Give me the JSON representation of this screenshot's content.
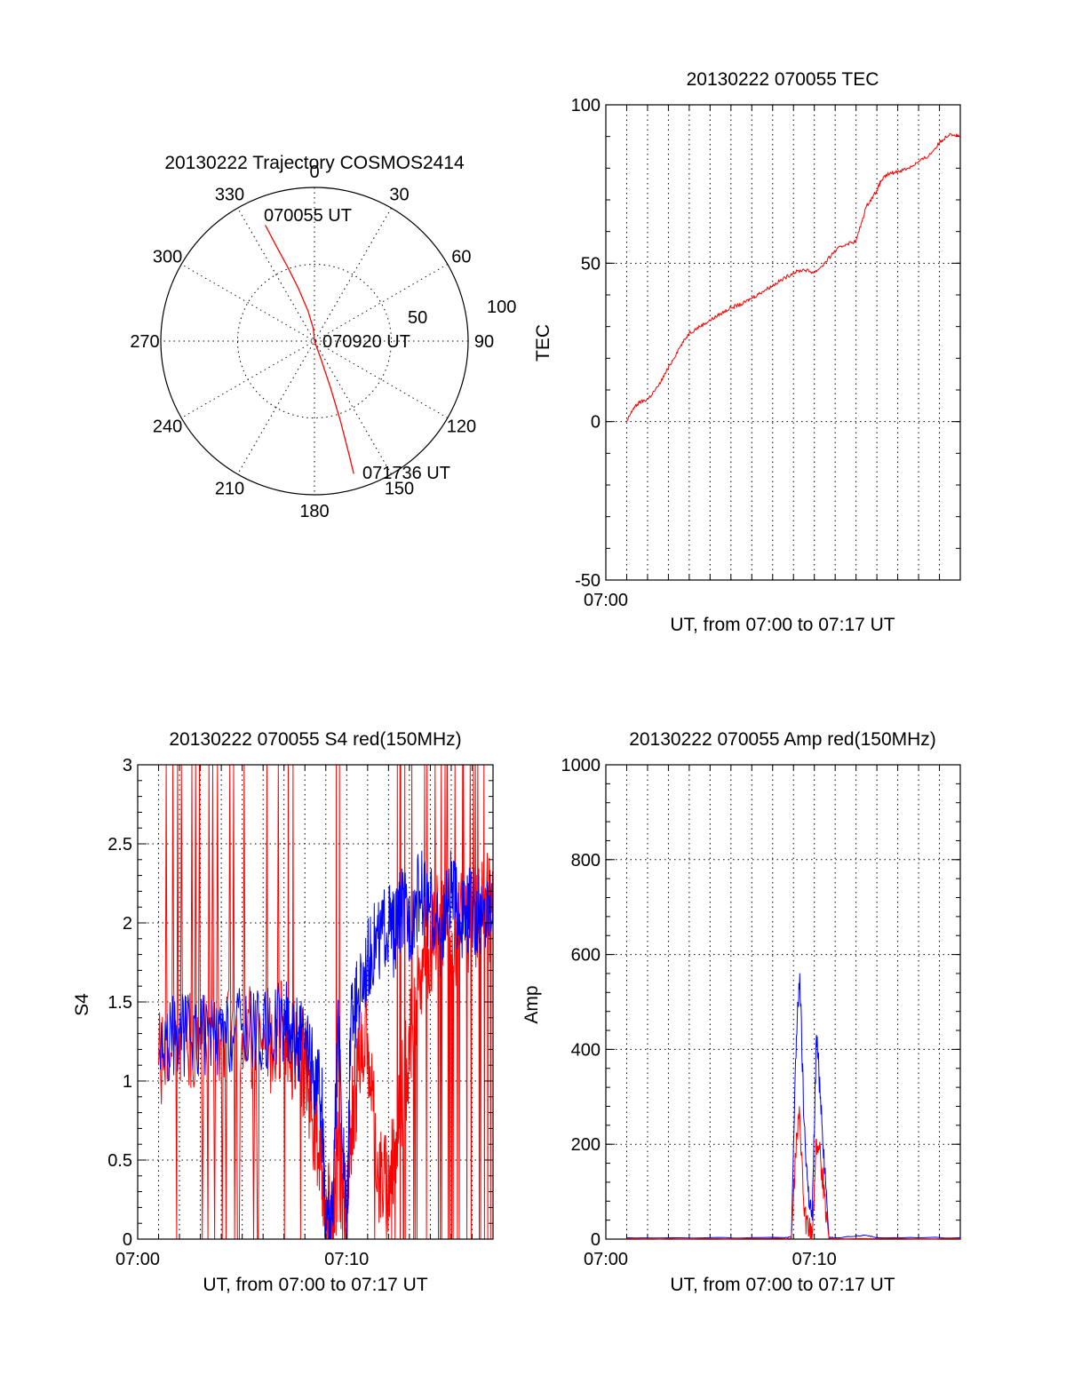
{
  "colors": {
    "red": "#ff0000",
    "blue": "#0000ff",
    "axis": "#000000"
  },
  "chart_data": [
    {
      "id": "trajectory",
      "type": "polar",
      "title": "20130222 Trajectory COSMOS2414",
      "angle_labels": [
        "0",
        "30",
        "60",
        "90",
        "120",
        "150",
        "180",
        "210",
        "240",
        "270",
        "300",
        "330"
      ],
      "radius_labels": [
        "50",
        "100"
      ],
      "rlim": [
        0,
        100
      ],
      "grid": true,
      "start_label": "070055 UT",
      "mid_label": "070920 UT",
      "end_label": "071736 UT",
      "track": {
        "azimuth_deg": [
          337,
          338,
          340,
          343,
          348,
          355,
          0,
          160,
          161,
          162,
          163,
          163.5
        ],
        "radius": [
          82,
          68,
          52,
          36,
          20,
          8,
          0,
          12,
          32,
          55,
          76,
          90
        ]
      }
    },
    {
      "id": "tec",
      "type": "line",
      "title": "20130222 070055 TEC",
      "ylabel": "TEC",
      "xlabel": "UT, from 07:00 to 07:17 UT",
      "x_tick_labels": [
        "07:00"
      ],
      "y_tick_labels": [
        "-50",
        "0",
        "50",
        "100"
      ],
      "xlim": [
        0,
        17
      ],
      "ylim": [
        -50,
        100
      ],
      "grid": true,
      "series": [
        {
          "color": "red",
          "x": [
            1.01,
            1.3,
            1.6,
            2.0,
            2.5,
            3.0,
            3.5,
            4.0,
            4.5,
            5.0,
            5.5,
            6.0,
            6.5,
            7.0,
            7.5,
            8.0,
            8.5,
            9.0,
            9.5,
            10.0,
            10.5,
            11.0,
            11.5,
            12.0,
            12.5,
            13.0,
            13.2,
            13.5,
            14.0,
            14.5,
            15.0,
            15.5,
            16.0,
            16.5,
            17.0
          ],
          "y": [
            0,
            4,
            6,
            7,
            11,
            17,
            23,
            28,
            30,
            32,
            34,
            36,
            37,
            39,
            41,
            43,
            45,
            47,
            48,
            47,
            50,
            54,
            56,
            57,
            68,
            73,
            76,
            78,
            79,
            80,
            82,
            84,
            88,
            91,
            90
          ]
        }
      ]
    },
    {
      "id": "s4",
      "type": "line",
      "title": "20130222 070055 S4 red(150MHz)",
      "ylabel": "S4",
      "xlabel": "UT, from 07:00 to 07:17 UT",
      "x_tick_labels": [
        "07:00",
        "07:10"
      ],
      "y_tick_labels": [
        "0",
        "0.5",
        "1",
        "1.5",
        "2",
        "2.5",
        "3"
      ],
      "xlim": [
        0,
        17
      ],
      "ylim": [
        0,
        3
      ],
      "grid": true,
      "series": [
        {
          "color": "red",
          "x": [
            1.0,
            2.0,
            3.0,
            4.0,
            5.0,
            6.0,
            7.0,
            7.5,
            8.0,
            8.5,
            8.8,
            9.0,
            9.3,
            9.6,
            10.0,
            10.2,
            10.5,
            11.0,
            11.5,
            12.0,
            12.3,
            12.6,
            13.0,
            13.5,
            14.0,
            14.5,
            15.0,
            15.5,
            16.0,
            16.5,
            17.0
          ],
          "y": [
            1.1,
            1.3,
            1.2,
            1.25,
            1.3,
            1.2,
            1.3,
            1.2,
            1.1,
            0.7,
            0.5,
            0.12,
            0.15,
            0.5,
            0.12,
            0.7,
            1.0,
            1.3,
            0.4,
            0.3,
            0.6,
            0.9,
            1.2,
            1.6,
            1.9,
            2.0,
            1.8,
            2.1,
            1.9,
            2.2,
            2.0
          ]
        },
        {
          "color": "blue",
          "x": [
            1.0,
            2.0,
            3.0,
            4.0,
            5.0,
            6.0,
            7.0,
            7.5,
            8.0,
            8.5,
            8.8,
            9.0,
            9.3,
            9.6,
            10.0,
            10.2,
            10.5,
            11.0,
            11.5,
            12.0,
            12.3,
            12.6,
            13.0,
            13.5,
            14.0,
            14.5,
            15.0,
            15.5,
            16.0,
            16.5,
            17.0
          ],
          "y": [
            1.2,
            1.3,
            1.3,
            1.25,
            1.35,
            1.3,
            1.4,
            1.3,
            1.2,
            1.0,
            0.9,
            0.1,
            0.12,
            1.3,
            0.1,
            1.4,
            1.5,
            1.8,
            1.9,
            2.0,
            1.9,
            2.1,
            2.0,
            2.2,
            2.1,
            1.9,
            2.2,
            2.0,
            2.1,
            2.0,
            2.2
          ]
        }
      ]
    },
    {
      "id": "amp",
      "type": "line",
      "title": "20130222 070055 Amp red(150MHz)",
      "ylabel": "Amp",
      "xlabel": "UT, from 07:00 to 07:17 UT",
      "x_tick_labels": [
        "07:00",
        "07:10"
      ],
      "y_tick_labels": [
        "0",
        "200",
        "400",
        "600",
        "800",
        "1000"
      ],
      "xlim": [
        0,
        17
      ],
      "ylim": [
        0,
        1000
      ],
      "grid": true,
      "series": [
        {
          "color": "blue",
          "x": [
            1.0,
            5.0,
            8.6,
            8.9,
            9.1,
            9.3,
            9.5,
            9.7,
            9.9,
            10.1,
            10.3,
            10.5,
            10.7,
            11.0,
            12.5,
            13.0,
            17.0
          ],
          "y": [
            3,
            3,
            3,
            5,
            380,
            560,
            250,
            100,
            40,
            430,
            300,
            150,
            4,
            3,
            8,
            3,
            3
          ]
        },
        {
          "color": "red",
          "x": [
            1.0,
            5.0,
            8.6,
            8.9,
            9.1,
            9.3,
            9.5,
            9.7,
            9.9,
            10.1,
            10.3,
            10.5,
            10.7,
            11.0,
            17.0
          ],
          "y": [
            1,
            1,
            1,
            2,
            180,
            260,
            60,
            20,
            10,
            210,
            170,
            90,
            2,
            1,
            1
          ]
        }
      ]
    }
  ]
}
